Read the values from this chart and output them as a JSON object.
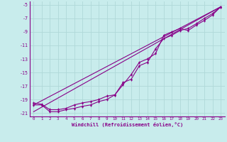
{
  "xlabel": "Windchill (Refroidissement éolien,°C)",
  "background_color": "#c8ecec",
  "grid_color": "#b0d8d8",
  "line_color": "#880088",
  "xlim": [
    -0.5,
    23.5
  ],
  "ylim": [
    -21.5,
    -4.5
  ],
  "xticks": [
    0,
    1,
    2,
    3,
    4,
    5,
    6,
    7,
    8,
    9,
    10,
    11,
    12,
    13,
    14,
    15,
    16,
    17,
    18,
    19,
    20,
    21,
    22,
    23
  ],
  "yticks": [
    -5,
    -7,
    -9,
    -11,
    -13,
    -15,
    -17,
    -19,
    -21
  ],
  "curve1_x": [
    0,
    1,
    2,
    3,
    4,
    5,
    6,
    7,
    8,
    9,
    10,
    11,
    12,
    13,
    14,
    15,
    16,
    17,
    18,
    19,
    20,
    21,
    22,
    23
  ],
  "curve1_y": [
    -19.8,
    -19.8,
    -20.8,
    -20.8,
    -20.5,
    -20.3,
    -20.0,
    -19.8,
    -19.3,
    -19.0,
    -18.3,
    -16.5,
    -16.0,
    -14.0,
    -13.5,
    -11.5,
    -10.0,
    -9.5,
    -8.8,
    -8.5,
    -7.8,
    -7.0,
    -6.3,
    -5.3
  ],
  "curve2_x": [
    0,
    1,
    2,
    3,
    4,
    5,
    6,
    7,
    8,
    9,
    10,
    11,
    12,
    13,
    14,
    15,
    16,
    17,
    18,
    19,
    20,
    21,
    22,
    23
  ],
  "curve2_y": [
    -19.5,
    -19.7,
    -20.5,
    -20.5,
    -20.3,
    -19.8,
    -19.5,
    -19.3,
    -19.0,
    -18.5,
    -18.3,
    -16.8,
    -15.3,
    -13.5,
    -13.0,
    -12.2,
    -9.5,
    -9.0,
    -8.5,
    -8.8,
    -8.0,
    -7.3,
    -6.5,
    -5.3
  ],
  "line1_x": [
    0,
    23
  ],
  "line1_y": [
    -19.8,
    -5.3
  ],
  "line2_x": [
    0,
    23
  ],
  "line2_y": [
    -20.8,
    -5.3
  ]
}
